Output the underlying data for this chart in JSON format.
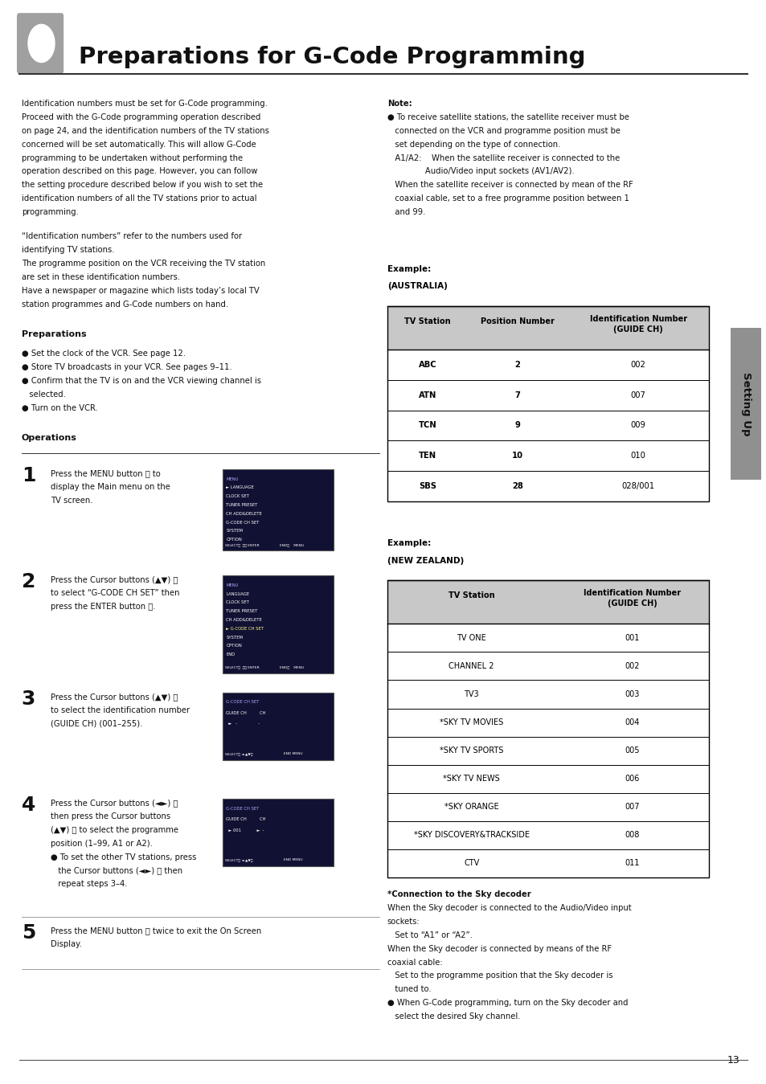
{
  "title": "Preparations for G-Code Programming",
  "page_number": "13",
  "bg_color": "#ffffff",
  "aus_rows": [
    [
      "ABC",
      "2",
      "002"
    ],
    [
      "ATN",
      "7",
      "007"
    ],
    [
      "TCN",
      "9",
      "009"
    ],
    [
      "TEN",
      "10",
      "010"
    ],
    [
      "SBS",
      "28",
      "028/001"
    ]
  ],
  "nz_rows": [
    [
      "TV ONE",
      "001"
    ],
    [
      "CHANNEL 2",
      "002"
    ],
    [
      "TV3",
      "003"
    ],
    [
      "*SKY TV MOVIES",
      "004"
    ],
    [
      "*SKY TV SPORTS",
      "005"
    ],
    [
      "*SKY TV NEWS",
      "006"
    ],
    [
      "*SKY ORANGE",
      "007"
    ],
    [
      "*SKY DISCOVERY&TRACKSIDE",
      "008"
    ],
    [
      "CTV",
      "011"
    ]
  ]
}
